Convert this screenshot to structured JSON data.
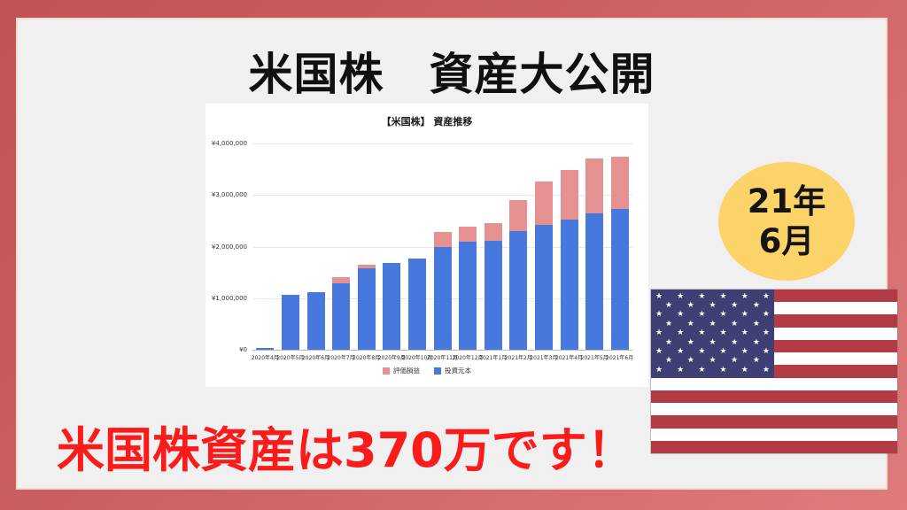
{
  "frame": {
    "border_gradient_start": "#c25257",
    "border_gradient_end": "#dd7b7d",
    "inner_background": "#f0f0f1",
    "inner_border_line": "#f8dccc"
  },
  "title": "米国株　資産大公開",
  "badge": {
    "line1": "21年",
    "line2": "6月",
    "bg_color": "#fbd369",
    "text_color": "#141414"
  },
  "caption": {
    "text": "米国株資産は370万です！",
    "color": "#fa1b1b"
  },
  "flag": {
    "name": "united-states-flag",
    "stripe_red": "#b23b45",
    "stripe_white": "#ffffff",
    "canton_blue": "#3f3f73",
    "star_glyph": "★",
    "star_rows": [
      6,
      5,
      6,
      5,
      6,
      5,
      6,
      5,
      6
    ],
    "stripe_count": 13
  },
  "chart_data": {
    "type": "bar",
    "stacked": true,
    "title": "【米国株】 資産推移",
    "xlabel": "",
    "ylabel": "",
    "ylim": [
      0,
      4000000
    ],
    "grid": true,
    "legend_position": "bottom",
    "y_ticks": [
      "¥4,000,000",
      "¥3,000,000",
      "¥2,000,000",
      "¥1,000,000",
      "¥0"
    ],
    "categories": [
      "2020年4月",
      "2020年5月",
      "2020年6月",
      "2020年7月",
      "2020年8月",
      "2020年9月",
      "2020年10月",
      "2020年11月",
      "2020年12月",
      "2021年1月",
      "2021年2月",
      "2021年3月",
      "2021年4月",
      "2021年5月",
      "2021年6月"
    ],
    "series": [
      {
        "name": "投資元本",
        "color": "#4678dd",
        "values": [
          30000,
          1060000,
          1120000,
          1280000,
          1580000,
          1680000,
          1770000,
          2000000,
          2100000,
          2120000,
          2300000,
          2420000,
          2520000,
          2640000,
          2730000
        ]
      },
      {
        "name": "評価損益",
        "color": "#e59192",
        "values": [
          0,
          0,
          0,
          120000,
          70000,
          0,
          0,
          290000,
          280000,
          330000,
          610000,
          840000,
          960000,
          1070000,
          1010000
        ]
      }
    ],
    "legend": [
      {
        "label": "評価損益",
        "color": "#e59192"
      },
      {
        "label": "投資元本",
        "color": "#4678dd"
      }
    ]
  }
}
